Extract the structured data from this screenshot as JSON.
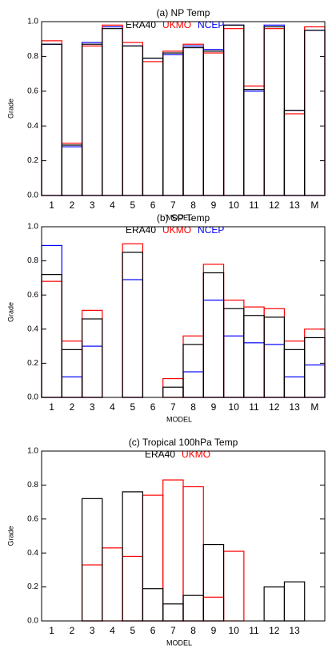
{
  "chart_data": [
    {
      "type": "bar",
      "title": "(a) NP Temp",
      "xlabel": "MODEL",
      "ylabel": "Grade",
      "categories": [
        "1",
        "2",
        "3",
        "4",
        "5",
        "6",
        "7",
        "8",
        "9",
        "10",
        "11",
        "12",
        "13",
        "M"
      ],
      "ylim": [
        0,
        1.0
      ],
      "yticks": [
        {
          "value": 0,
          "label": "0.0"
        },
        {
          "value": 0.2,
          "label": "0.2"
        },
        {
          "value": 0.4,
          "label": "0.4"
        },
        {
          "value": 0.6,
          "label": "0.6"
        },
        {
          "value": 0.8,
          "label": "0.8"
        },
        {
          "value": 1.0,
          "label": "1.0"
        }
      ],
      "series": [
        {
          "name": "ERA40",
          "color": "#000000",
          "values": [
            0.87,
            0.29,
            0.87,
            0.96,
            0.86,
            0.79,
            0.82,
            0.85,
            0.83,
            0.98,
            0.61,
            0.97,
            0.49,
            0.95
          ]
        },
        {
          "name": "UKMO",
          "color": "#ff0000",
          "values": [
            0.89,
            0.3,
            0.86,
            0.98,
            0.88,
            0.77,
            0.83,
            0.87,
            0.82,
            0.96,
            0.63,
            0.96,
            0.47,
            0.97
          ]
        },
        {
          "name": "NCEP",
          "color": "#0000ff",
          "values": [
            0.87,
            0.28,
            0.88,
            0.97,
            0.86,
            0.79,
            0.81,
            0.86,
            0.84,
            0.98,
            0.6,
            0.98,
            0.49,
            0.95
          ]
        }
      ]
    },
    {
      "type": "bar",
      "title": "(b) SP Temp",
      "xlabel": "MODEL",
      "ylabel": "Grade",
      "categories": [
        "1",
        "2",
        "3",
        "4",
        "5",
        "6",
        "7",
        "8",
        "9",
        "10",
        "11",
        "12",
        "13",
        "M"
      ],
      "ylim": [
        0,
        1.0
      ],
      "yticks": [
        {
          "value": 0,
          "label": "0.0"
        },
        {
          "value": 0.2,
          "label": "0.2"
        },
        {
          "value": 0.4,
          "label": "0.4"
        },
        {
          "value": 0.6,
          "label": "0.6"
        },
        {
          "value": 0.8,
          "label": "0.8"
        },
        {
          "value": 1.0,
          "label": "1.0"
        }
      ],
      "series": [
        {
          "name": "ERA40",
          "color": "#000000",
          "values": [
            0.72,
            0.28,
            0.46,
            0,
            0.85,
            0,
            0.06,
            0.31,
            0.73,
            0.52,
            0.48,
            0.47,
            0.28,
            0.35
          ]
        },
        {
          "name": "UKMO",
          "color": "#ff0000",
          "values": [
            0.68,
            0.33,
            0.51,
            0,
            0.9,
            0,
            0.11,
            0.36,
            0.78,
            0.57,
            0.53,
            0.52,
            0.33,
            0.4
          ]
        },
        {
          "name": "NCEP",
          "color": "#0000ff",
          "values": [
            0.89,
            0.12,
            0.3,
            0,
            0.69,
            0,
            0,
            0.15,
            0.57,
            0.36,
            0.32,
            0.31,
            0.12,
            0.19
          ]
        }
      ]
    },
    {
      "type": "bar",
      "title": "(c) Tropical 100hPa Temp",
      "xlabel": "MODEL",
      "ylabel": "Grade",
      "categories": [
        "1",
        "2",
        "3",
        "4",
        "5",
        "6",
        "7",
        "8",
        "9",
        "10",
        "11",
        "12",
        "13",
        null
      ],
      "ylim": [
        0,
        1.0
      ],
      "yticks": [
        {
          "value": 0,
          "label": "0.0"
        },
        {
          "value": 0.2,
          "label": "0.2"
        },
        {
          "value": 0.4,
          "label": "0.4"
        },
        {
          "value": 0.6,
          "label": "0.6"
        },
        {
          "value": 0.8,
          "label": "0.8"
        },
        {
          "value": 1.0,
          "label": "1.0"
        }
      ],
      "series": [
        {
          "name": "ERA40",
          "color": "#000000",
          "values": [
            0,
            0,
            0.72,
            0,
            0.76,
            0.19,
            0.1,
            0.15,
            0.45,
            0,
            0,
            0.2,
            0.23,
            0
          ]
        },
        {
          "name": "UKMO",
          "color": "#ff0000",
          "values": [
            0,
            0,
            0.33,
            0.43,
            0.38,
            0.74,
            0.83,
            0.79,
            0.14,
            0.41,
            0,
            0,
            0,
            0
          ]
        }
      ]
    }
  ]
}
